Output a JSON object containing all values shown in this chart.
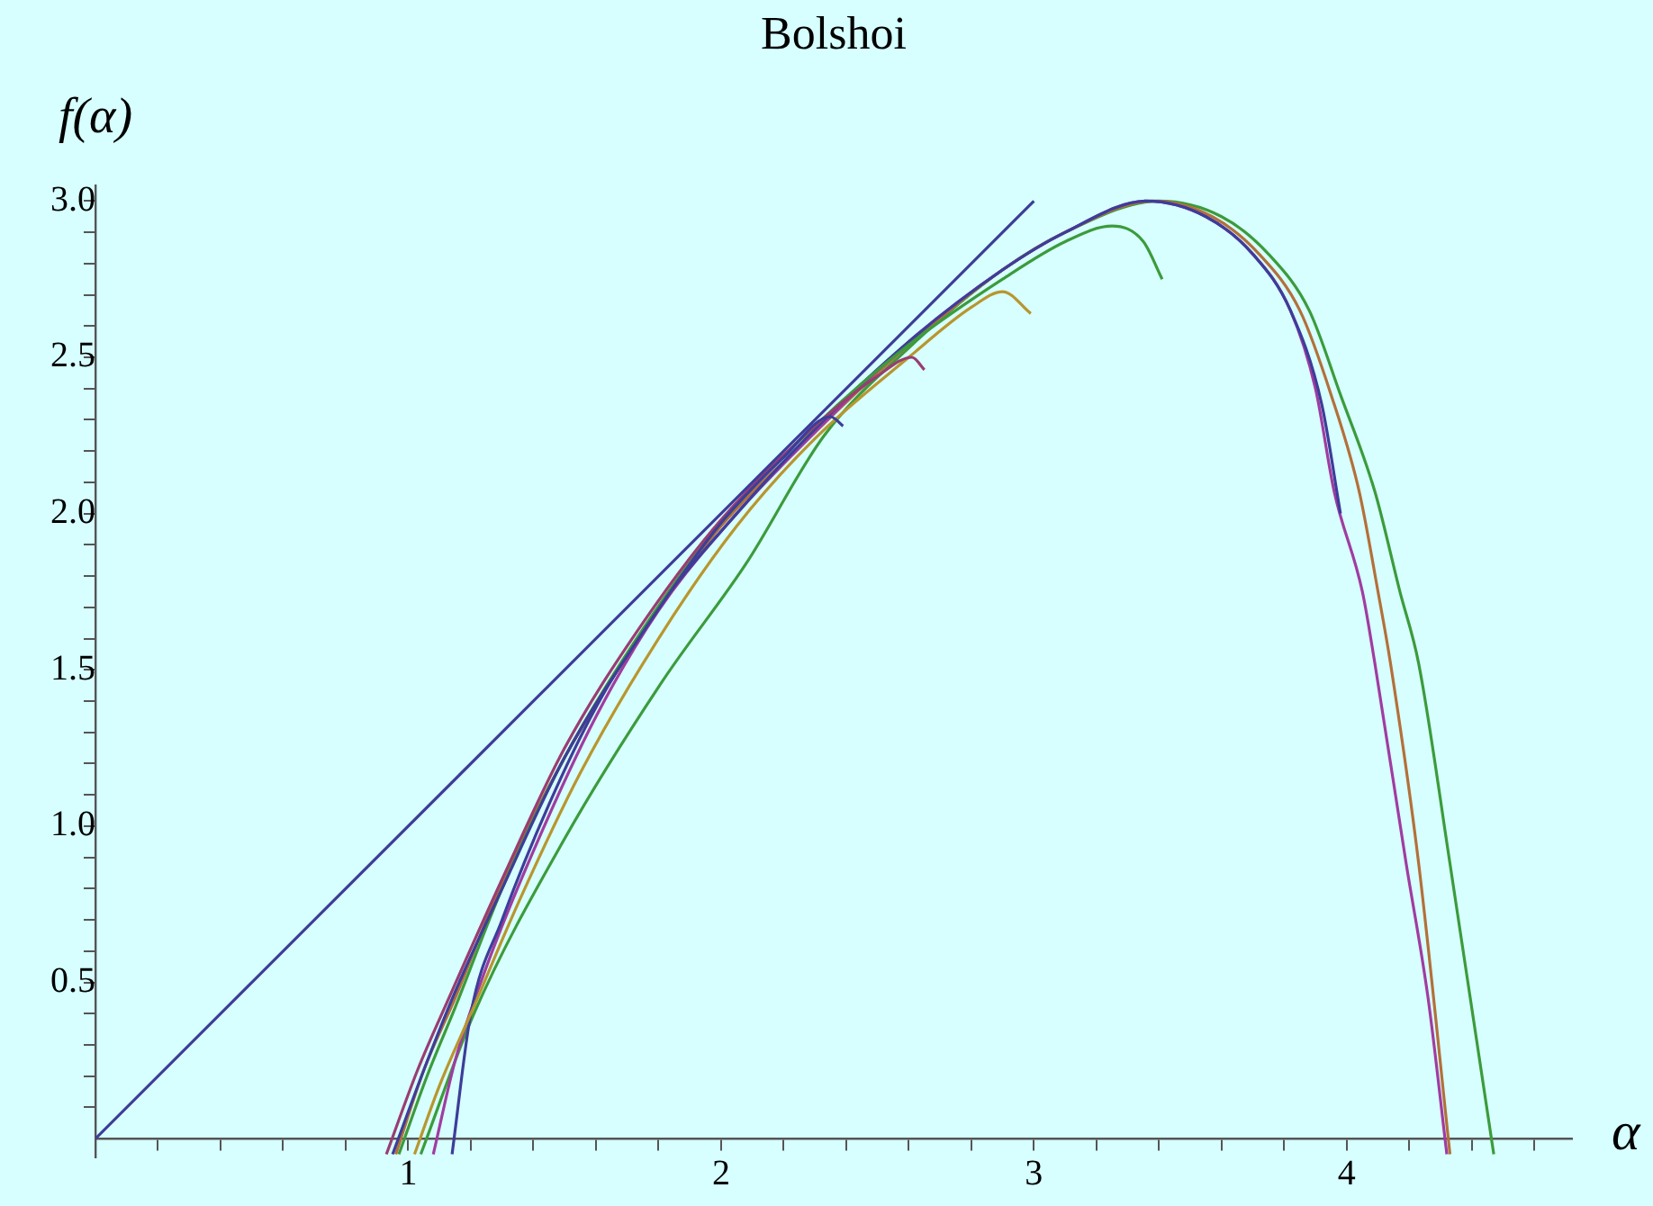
{
  "chart_data": {
    "type": "line",
    "title": "Bolshoi",
    "xlabel": "α",
    "ylabel": "f(α)",
    "xlim": [
      0,
      4.72
    ],
    "ylim": [
      -0.06,
      3.05
    ],
    "xticks": [
      {
        "value": 0.2,
        "label": null
      },
      {
        "value": 0.4,
        "label": null
      },
      {
        "value": 0.6,
        "label": null
      },
      {
        "value": 0.8,
        "label": null
      },
      1,
      {
        "value": 1.2,
        "label": null
      },
      {
        "value": 1.4,
        "label": null
      },
      {
        "value": 1.6,
        "label": null
      },
      {
        "value": 1.8,
        "label": null
      },
      2,
      {
        "value": 2.2,
        "label": null
      },
      {
        "value": 2.4,
        "label": null
      },
      {
        "value": 2.6,
        "label": null
      },
      {
        "value": 2.8,
        "label": null
      },
      3,
      {
        "value": 3.2,
        "label": null
      },
      {
        "value": 3.4,
        "label": null
      },
      {
        "value": 3.6,
        "label": null
      },
      {
        "value": 3.8,
        "label": null
      },
      4,
      {
        "value": 4.2,
        "label": null
      },
      {
        "value": 4.4,
        "label": null
      },
      {
        "value": 4.6,
        "label": null
      }
    ],
    "yticks": [
      {
        "value": 0.1,
        "label": null
      },
      {
        "value": 0.2,
        "label": null
      },
      {
        "value": 0.3,
        "label": null
      },
      {
        "value": 0.4,
        "label": null
      },
      0.5,
      {
        "value": 0.6,
        "label": null
      },
      {
        "value": 0.7,
        "label": null
      },
      {
        "value": 0.8,
        "label": null
      },
      {
        "value": 0.9,
        "label": null
      },
      {
        "value": 1,
        "label": "1.0"
      },
      {
        "value": 1.1,
        "label": null
      },
      {
        "value": 1.2,
        "label": null
      },
      {
        "value": 1.3,
        "label": null
      },
      {
        "value": 1.4,
        "label": null
      },
      1.5,
      {
        "value": 1.6,
        "label": null
      },
      {
        "value": 1.7,
        "label": null
      },
      {
        "value": 1.8,
        "label": null
      },
      {
        "value": 1.9,
        "label": null
      },
      {
        "value": 2,
        "label": "2.0"
      },
      {
        "value": 2.1,
        "label": null
      },
      {
        "value": 2.2,
        "label": null
      },
      {
        "value": 2.3,
        "label": null
      },
      {
        "value": 2.4,
        "label": null
      },
      2.5,
      {
        "value": 2.6,
        "label": null
      },
      {
        "value": 2.7,
        "label": null
      },
      {
        "value": 2.8,
        "label": null
      },
      {
        "value": 2.9,
        "label": null
      },
      {
        "value": 3,
        "label": "3.0"
      }
    ],
    "marker": "none",
    "line_style": "solid",
    "series": [
      {
        "color": "#3d3d99",
        "x": [
          0,
          3
        ],
        "values": [
          0,
          3
        ]
      },
      {
        "color": "#3d3d99",
        "x": [
          0.95,
          1.05,
          1.15,
          1.3,
          1.5,
          1.75,
          2.0,
          2.2,
          2.35,
          2.39
        ],
        "values": [
          -0.05,
          0.22,
          0.47,
          0.8,
          1.22,
          1.62,
          1.97,
          2.18,
          2.31,
          2.28
        ]
      },
      {
        "color": "#993d71",
        "x": [
          0.93,
          1.03,
          1.13,
          1.3,
          1.5,
          1.75,
          2.0,
          2.3,
          2.5,
          2.61,
          2.65
        ],
        "values": [
          -0.05,
          0.22,
          0.45,
          0.83,
          1.25,
          1.65,
          1.98,
          2.28,
          2.44,
          2.5,
          2.46
        ]
      },
      {
        "color": "#b8962e",
        "x": [
          1.02,
          1.1,
          1.2,
          1.35,
          1.55,
          1.8,
          2.05,
          2.3,
          2.6,
          2.8,
          2.9,
          2.99
        ],
        "values": [
          -0.05,
          0.17,
          0.4,
          0.75,
          1.17,
          1.6,
          1.96,
          2.24,
          2.5,
          2.66,
          2.71,
          2.64
        ]
      },
      {
        "color": "#3c9b3c",
        "x": [
          0.97,
          1.06,
          1.15,
          1.3,
          1.5,
          1.75,
          2.0,
          2.3,
          2.6,
          2.9,
          3.1,
          3.25,
          3.35,
          3.41
        ],
        "values": [
          -0.05,
          0.2,
          0.42,
          0.8,
          1.22,
          1.63,
          1.97,
          2.28,
          2.54,
          2.75,
          2.87,
          2.92,
          2.87,
          2.75
        ]
      },
      {
        "color": "#3d3d99",
        "x": [
          1.14,
          1.2,
          1.3,
          1.45,
          1.6,
          1.8,
          2.05,
          2.3,
          2.6,
          2.9,
          3.1,
          3.36,
          3.55,
          3.7,
          3.82,
          3.92,
          3.98
        ],
        "values": [
          -0.05,
          0.4,
          0.7,
          1.07,
          1.38,
          1.7,
          2.0,
          2.27,
          2.55,
          2.78,
          2.9,
          3.0,
          2.95,
          2.83,
          2.65,
          2.35,
          2.0
        ]
      },
      {
        "color": "#a03ca0",
        "x": [
          1.08,
          1.15,
          1.25,
          1.4,
          1.6,
          1.8,
          2.05,
          2.3,
          2.6,
          2.9,
          3.1,
          3.36,
          3.55,
          3.7,
          3.82,
          3.9,
          3.96,
          4.05,
          4.09,
          4.19,
          4.26,
          4.32
        ],
        "values": [
          -0.05,
          0.25,
          0.55,
          0.92,
          1.35,
          1.69,
          2.0,
          2.26,
          2.55,
          2.78,
          2.9,
          3.0,
          2.95,
          2.83,
          2.65,
          2.4,
          2.07,
          1.75,
          1.52,
          0.88,
          0.45,
          -0.05
        ]
      },
      {
        "color": "#b3703a",
        "x": [
          0.96,
          1.05,
          1.15,
          1.3,
          1.5,
          1.75,
          2.0,
          2.3,
          2.6,
          2.9,
          3.1,
          3.38,
          3.57,
          3.72,
          3.85,
          3.95,
          4.04,
          4.1,
          4.14,
          4.23,
          4.33
        ],
        "values": [
          -0.05,
          0.22,
          0.45,
          0.82,
          1.22,
          1.62,
          1.96,
          2.26,
          2.54,
          2.78,
          2.9,
          3.0,
          2.95,
          2.83,
          2.65,
          2.38,
          2.07,
          1.75,
          1.52,
          0.88,
          -0.05
        ]
      },
      {
        "color": "#3c9b3c",
        "x": [
          1.04,
          1.21,
          1.5,
          1.81,
          2.08,
          2.33,
          2.6,
          2.9,
          3.1,
          3.4,
          3.6,
          3.75,
          3.88,
          3.98,
          4.09,
          4.17,
          4.23,
          4.33,
          4.47
        ],
        "values": [
          -0.05,
          0.4,
          0.96,
          1.46,
          1.84,
          2.25,
          2.53,
          2.78,
          2.9,
          3.0,
          2.95,
          2.83,
          2.65,
          2.38,
          2.07,
          1.75,
          1.52,
          0.88,
          -0.05
        ]
      }
    ]
  }
}
